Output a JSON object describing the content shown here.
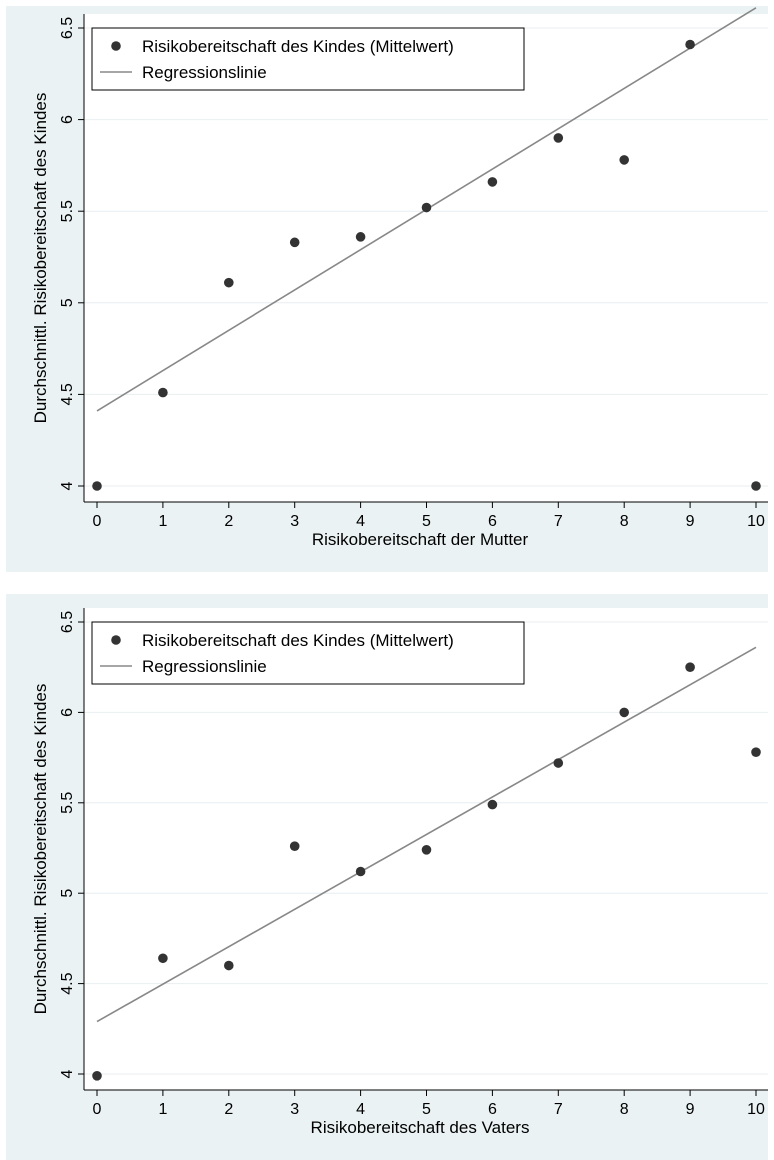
{
  "chart_data": [
    {
      "type": "scatter",
      "title": "",
      "xlabel": "Risikobereitschaft der Mutter",
      "ylabel": "Durchschnittl. Risikobereitschaft des Kindes",
      "xlim": [
        0,
        10
      ],
      "ylim": [
        4,
        6.5
      ],
      "x_ticks": [
        "0",
        "1",
        "2",
        "3",
        "4",
        "5",
        "6",
        "7",
        "8",
        "9",
        "10"
      ],
      "y_ticks": [
        "4",
        "4.5",
        "5",
        "5.5",
        "6",
        "6.5"
      ],
      "grid": true,
      "legend_position": "top-left",
      "series": [
        {
          "name": "Risikobereitschaft des Kindes (Mittelwert)",
          "kind": "scatter",
          "color": "#333333",
          "x": [
            0,
            1,
            2,
            3,
            4,
            5,
            6,
            7,
            8,
            9,
            10
          ],
          "y": [
            4.0,
            4.51,
            5.11,
            5.33,
            5.36,
            5.52,
            5.66,
            5.9,
            5.78,
            6.41,
            4.0
          ]
        },
        {
          "name": "Regressionslinie",
          "kind": "line",
          "color": "#888888",
          "x": [
            0,
            10
          ],
          "y": [
            4.41,
            6.61
          ]
        }
      ]
    },
    {
      "type": "scatter",
      "title": "",
      "xlabel": "Risikobereitschaft des Vaters",
      "ylabel": "Durchschnittl. Risikobereitschaft des Kindes",
      "xlim": [
        0,
        10
      ],
      "ylim": [
        4,
        6.5
      ],
      "x_ticks": [
        "0",
        "1",
        "2",
        "3",
        "4",
        "5",
        "6",
        "7",
        "8",
        "9",
        "10"
      ],
      "y_ticks": [
        "4",
        "4.5",
        "5",
        "5.5",
        "6",
        "6.5"
      ],
      "grid": true,
      "legend_position": "top-left",
      "series": [
        {
          "name": "Risikobereitschaft des Kindes (Mittelwert)",
          "kind": "scatter",
          "color": "#333333",
          "x": [
            0,
            1,
            2,
            3,
            4,
            5,
            6,
            7,
            8,
            9,
            10
          ],
          "y": [
            3.99,
            4.64,
            4.6,
            5.26,
            5.12,
            5.24,
            5.49,
            5.72,
            6.0,
            6.25,
            5.78
          ]
        },
        {
          "name": "Regressionslinie",
          "kind": "line",
          "color": "#888888",
          "x": [
            0,
            10
          ],
          "y": [
            4.29,
            6.36
          ]
        }
      ]
    }
  ]
}
